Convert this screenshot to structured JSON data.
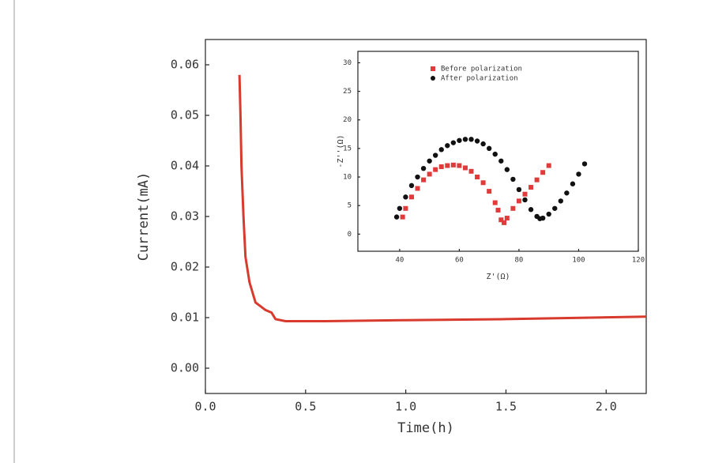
{
  "chart_data": [
    {
      "type": "line",
      "x_label": "Time(h)",
      "y_label": "Current(mA)",
      "xlim": [
        0,
        2.2
      ],
      "ylim": [
        -0.005,
        0.065
      ],
      "xticks": [
        {
          "value": 0,
          "label": "0.0"
        },
        0.5,
        {
          "value": 1,
          "label": "1.0"
        },
        1.5,
        {
          "value": 2,
          "label": "2.0"
        }
      ],
      "yticks": [
        {
          "value": 0,
          "label": "0.00"
        },
        0.01,
        0.02,
        0.03,
        0.04,
        0.05,
        0.06
      ],
      "series": [
        {
          "color": "#d83a2e",
          "x": [
            0.17,
            0.175,
            0.18,
            0.19,
            0.2,
            0.22,
            0.25,
            0.3,
            0.33,
            0.35,
            0.4,
            0.6,
            1.0,
            1.5,
            2.2
          ],
          "values": [
            0.058,
            0.05,
            0.04,
            0.03,
            0.022,
            0.017,
            0.013,
            0.0115,
            0.011,
            0.0097,
            0.0093,
            0.0093,
            0.0095,
            0.0097,
            0.0102
          ]
        }
      ]
    },
    {
      "type": "scatter",
      "x_label": "Z'(Ω)",
      "y_label": "-Z''(Ω)",
      "xlim": [
        26,
        120
      ],
      "ylim": [
        -3,
        32
      ],
      "xticks": [
        40,
        60,
        80,
        100,
        120
      ],
      "yticks": [
        0,
        5,
        10,
        15,
        20,
        25,
        30
      ],
      "legend": "upper left",
      "series": [
        {
          "name": "Before polarization",
          "color": "#e03a3a",
          "marker": "square",
          "x": [
            41,
            42,
            44,
            46,
            48,
            50,
            52,
            54,
            56,
            58,
            60,
            62,
            64,
            66,
            68,
            70,
            72,
            73,
            74,
            75,
            76,
            78,
            80,
            82,
            84,
            86,
            88,
            90
          ],
          "values": [
            3,
            4.5,
            6.5,
            8,
            9.5,
            10.5,
            11.3,
            11.8,
            12,
            12.1,
            12,
            11.6,
            11,
            10,
            9,
            7.5,
            5.5,
            4.2,
            2.5,
            2,
            2.8,
            4.5,
            5.8,
            7,
            8.2,
            9.5,
            10.8,
            12
          ]
        },
        {
          "name": "After polarization",
          "color": "#111111",
          "marker": "circle",
          "x": [
            39,
            40,
            42,
            44,
            46,
            48,
            50,
            52,
            54,
            56,
            58,
            60,
            62,
            64,
            66,
            68,
            70,
            72,
            74,
            76,
            78,
            80,
            82,
            84,
            86,
            87,
            88,
            90,
            92,
            94,
            96,
            98,
            100,
            102
          ],
          "values": [
            3,
            4.5,
            6.5,
            8.5,
            10,
            11.5,
            12.8,
            13.8,
            14.8,
            15.5,
            16,
            16.4,
            16.6,
            16.6,
            16.3,
            15.8,
            15,
            14,
            12.8,
            11.3,
            9.6,
            7.8,
            6,
            4.3,
            3.1,
            2.7,
            2.8,
            3.5,
            4.5,
            5.8,
            7.2,
            8.8,
            10.5,
            12.3
          ]
        }
      ]
    }
  ]
}
